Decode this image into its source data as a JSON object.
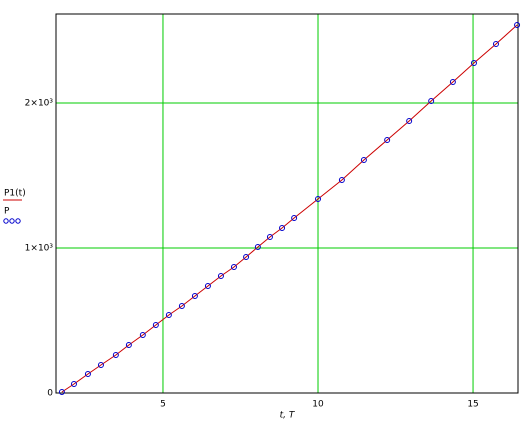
{
  "chart_data": {
    "type": "line",
    "x_label": "t, T",
    "xlim": [
      1.55,
      16.45
    ],
    "xticks": [
      5,
      10,
      15
    ],
    "ylim": [
      0,
      2614
    ],
    "yticks": [
      0,
      {
        "value": 1000,
        "label": "1×10³"
      },
      {
        "value": 2000,
        "label": "2×10³"
      }
    ],
    "grid": true,
    "series": [
      {
        "name": "P1(t)",
        "color": "#cc0000",
        "style": "line",
        "x": [
          1.74,
          2.13,
          2.58,
          3.0,
          3.48,
          3.9,
          4.35,
          4.77,
          5.19,
          5.61,
          6.03,
          6.45,
          6.87,
          7.29,
          7.68,
          8.06,
          8.45,
          8.84,
          9.23,
          10.0,
          10.77,
          11.48,
          12.23,
          12.94,
          13.65,
          14.35,
          15.03,
          15.74,
          16.42
        ],
        "values": [
          7,
          62,
          131,
          193,
          262,
          331,
          400,
          469,
          538,
          600,
          669,
          738,
          807,
          869,
          938,
          1007,
          1076,
          1138,
          1207,
          1338,
          1469,
          1607,
          1745,
          1876,
          2014,
          2145,
          2276,
          2407,
          2538
        ]
      },
      {
        "name": "P",
        "color": "#0000cc",
        "style": "points",
        "x": [
          1.74,
          2.13,
          2.58,
          3.0,
          3.48,
          3.9,
          4.35,
          4.77,
          5.19,
          5.61,
          6.03,
          6.45,
          6.87,
          7.29,
          7.68,
          8.06,
          8.45,
          8.84,
          9.23,
          10.0,
          10.77,
          11.48,
          12.23,
          12.94,
          13.65,
          14.35,
          15.03,
          15.74,
          16.42
        ],
        "values": [
          7,
          62,
          131,
          193,
          262,
          331,
          400,
          469,
          538,
          600,
          669,
          738,
          807,
          869,
          938,
          1007,
          1076,
          1138,
          1207,
          1338,
          1469,
          1607,
          1745,
          1876,
          2014,
          2145,
          2276,
          2407,
          2538
        ]
      }
    ]
  }
}
